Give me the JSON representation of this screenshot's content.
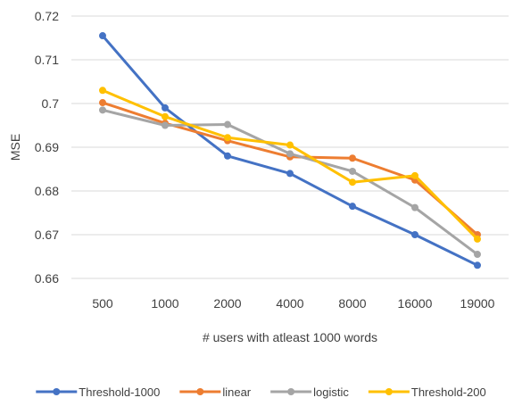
{
  "chart_data": {
    "type": "line",
    "title": "",
    "xlabel": "# users with atleast 1000 words",
    "ylabel": "MSE",
    "categories": [
      "500",
      "1000",
      "2000",
      "4000",
      "8000",
      "16000",
      "19000"
    ],
    "y_ticks": [
      "0.66",
      "0.67",
      "0.68",
      "0.69",
      "0.7",
      "0.71",
      "0.72"
    ],
    "ylim": [
      0.66,
      0.72
    ],
    "grid": true,
    "legend_position": "bottom",
    "series": [
      {
        "name": "Threshold-1000",
        "color": "#4472C4",
        "values": [
          0.7155,
          0.699,
          0.688,
          0.684,
          0.6765,
          0.67,
          0.663
        ]
      },
      {
        "name": "linear",
        "color": "#ED7D31",
        "values": [
          0.7002,
          0.6955,
          0.6915,
          0.6878,
          0.6875,
          0.6825,
          0.67
        ]
      },
      {
        "name": "logistic",
        "color": "#A5A5A5",
        "values": [
          0.6985,
          0.695,
          0.6952,
          0.6885,
          0.6845,
          0.6762,
          0.6655
        ]
      },
      {
        "name": "Threshold-200",
        "color": "#FFC000",
        "values": [
          0.703,
          0.697,
          0.6922,
          0.6905,
          0.682,
          0.6835,
          0.669
        ]
      }
    ]
  }
}
